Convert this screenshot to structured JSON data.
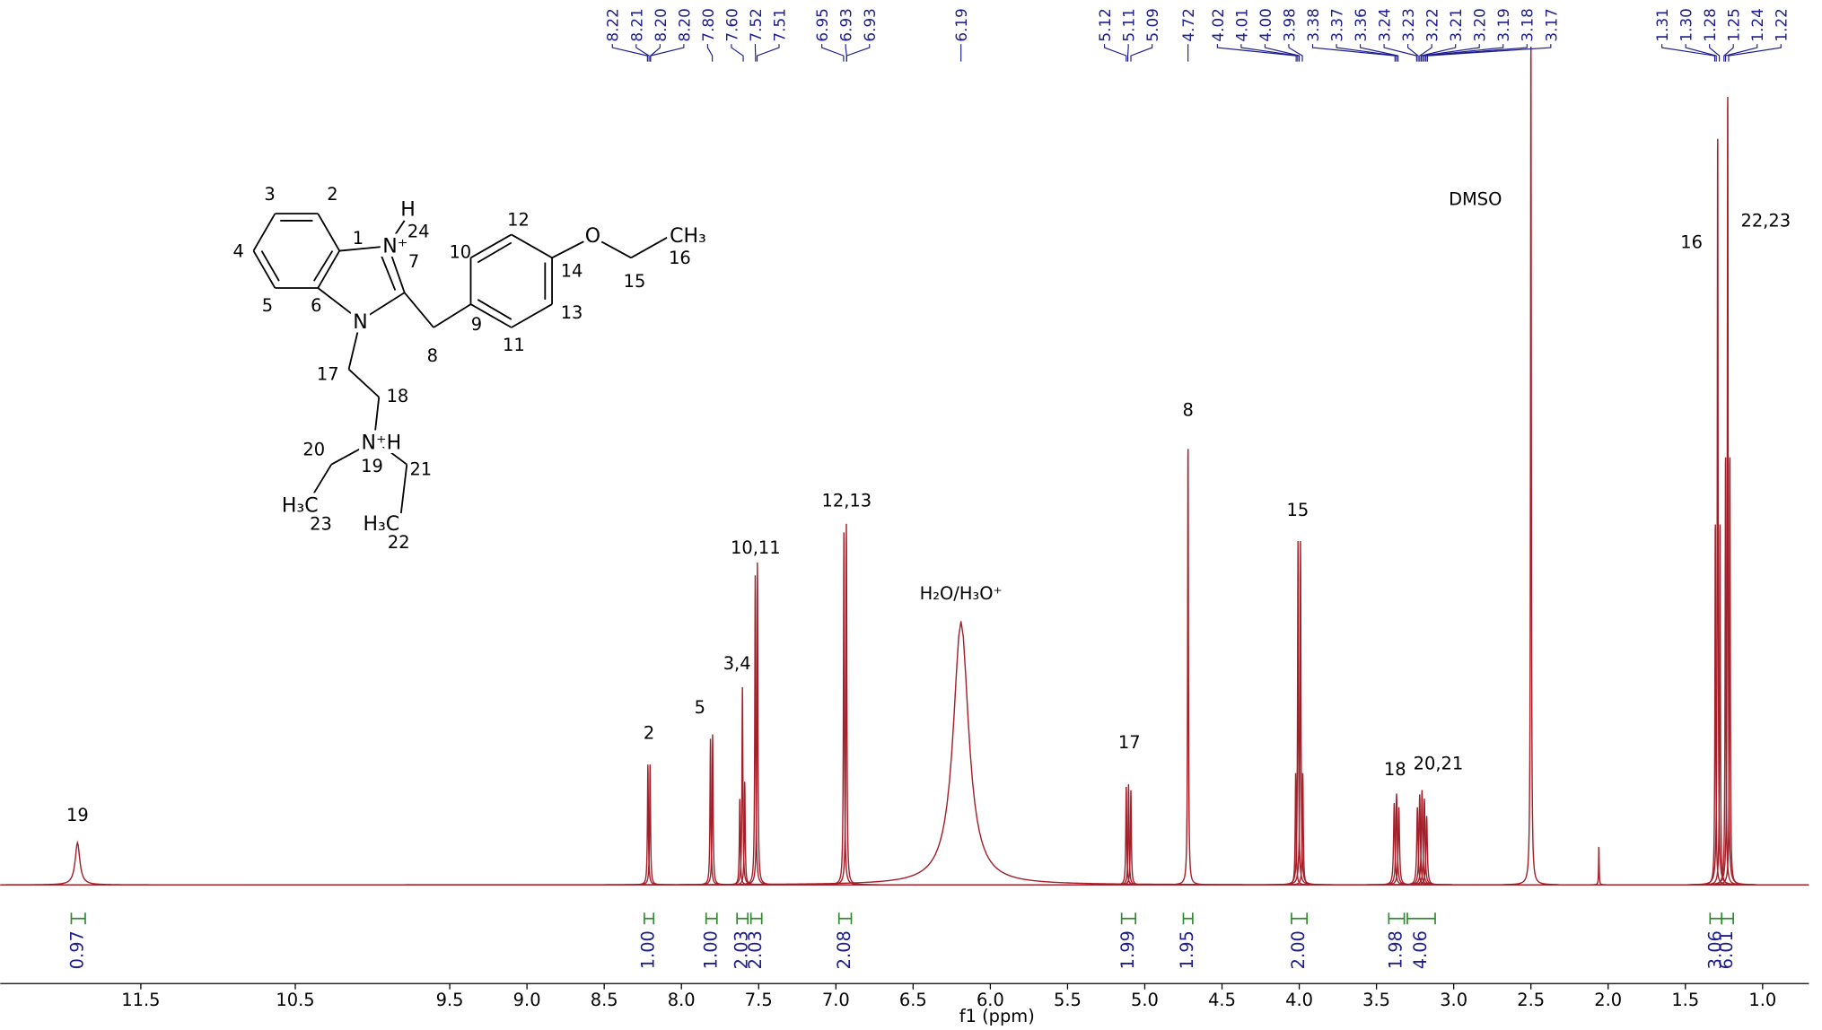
{
  "chart_data": {
    "type": "nmr",
    "xlabel": "f1 (ppm)",
    "xlim": [
      12.41,
      0.7
    ],
    "ylim": [
      0,
      100
    ],
    "xticks": [
      11.5,
      10.5,
      9.5,
      {
        "value": 9,
        "label": "9.0"
      },
      8.5,
      {
        "value": 8,
        "label": "8.0"
      },
      7.5,
      {
        "value": 7,
        "label": "7.0"
      },
      6.5,
      {
        "value": 6,
        "label": "6.0"
      },
      5.5,
      {
        "value": 5,
        "label": "5.0"
      },
      4.5,
      {
        "value": 4,
        "label": "4.0"
      },
      3.5,
      {
        "value": 3,
        "label": "3.0"
      },
      2.5,
      {
        "value": 2,
        "label": "2.0"
      },
      1.5,
      {
        "value": 1,
        "label": "1.0"
      }
    ],
    "spectrum_color": "#a3202a",
    "label_color": "#1c1c8f",
    "integral_color": "#2e8b2e",
    "peaks": {
      "shifts": [
        11.91,
        8.217,
        8.203,
        7.812,
        7.798,
        7.622,
        7.605,
        7.59,
        7.522,
        7.508,
        6.948,
        6.932,
        6.19,
        5.12,
        5.105,
        5.09,
        4.72,
        4.023,
        4.008,
        3.992,
        3.977,
        3.385,
        3.37,
        3.355,
        3.235,
        3.22,
        3.205,
        3.19,
        3.175,
        2.5,
        2.06,
        1.306,
        1.291,
        1.276,
        1.24,
        1.226,
        1.212
      ],
      "heights": [
        4.9,
        14,
        14,
        17,
        17.5,
        10,
        23,
        12,
        36,
        37.5,
        41,
        42,
        30.6,
        11.4,
        11.7,
        11,
        52,
        13,
        40,
        40,
        13,
        9.5,
        10.6,
        9,
        9,
        10.5,
        11,
        10,
        8,
        100,
        4.6,
        43,
        89,
        43,
        51,
        94,
        51
      ],
      "widths": [
        0.018,
        0.0035,
        0.0035,
        0.0035,
        0.0035,
        0.0035,
        0.0035,
        0.0035,
        0.0035,
        0.0035,
        0.0035,
        0.0035,
        0.06,
        0.0035,
        0.0035,
        0.0035,
        0.003,
        0.0035,
        0.0035,
        0.0035,
        0.0035,
        0.005,
        0.005,
        0.005,
        0.005,
        0.005,
        0.005,
        0.005,
        0.005,
        0.003,
        0.002,
        0.003,
        0.003,
        0.003,
        0.003,
        0.003,
        0.003
      ]
    },
    "peak_picks": {
      "values": [
        8.22,
        8.21,
        8.2,
        8.2,
        7.8,
        7.6,
        7.52,
        7.51,
        6.95,
        6.93,
        6.93,
        6.19,
        5.12,
        5.11,
        5.09,
        4.72,
        4.02,
        4.01,
        4,
        3.98,
        3.38,
        3.37,
        3.36,
        3.24,
        3.23,
        3.22,
        3.21,
        3.2,
        3.19,
        3.18,
        3.17,
        1.31,
        1.3,
        1.28,
        1.25,
        1.24,
        1.22
      ],
      "value_labels": [
        "8.22",
        "8.21",
        "8.20",
        "8.20",
        "7.80",
        "7.60",
        "7.52",
        "7.51",
        "6.95",
        "6.93",
        "6.93",
        "6.19",
        "5.12",
        "5.11",
        "5.09",
        "4.72",
        "4.02",
        "4.01",
        "4.00",
        "3.98",
        "3.38",
        "3.37",
        "3.36",
        "3.24",
        "3.23",
        "3.22",
        "3.21",
        "3.20",
        "3.19",
        "3.18",
        "3.17",
        "1.31",
        "1.30",
        "1.28",
        "1.25",
        "1.24",
        "1.22"
      ]
    },
    "integrals": {
      "ranges": [
        [
          11.95,
          11.86
        ],
        [
          8.24,
          8.18
        ],
        [
          7.84,
          7.77
        ],
        [
          7.64,
          7.57
        ],
        [
          7.55,
          7.48
        ],
        [
          6.98,
          6.9
        ],
        [
          5.15,
          5.06
        ],
        [
          4.75,
          4.69
        ],
        [
          4.05,
          3.95
        ],
        [
          3.42,
          3.32
        ],
        [
          3.3,
          3.12
        ],
        [
          1.34,
          1.265
        ],
        [
          1.265,
          1.19
        ]
      ],
      "values": [
        0.97,
        1,
        1,
        2.03,
        2.03,
        2.08,
        1.99,
        1.95,
        2,
        1.98,
        4.06,
        3.06,
        6.01
      ],
      "value_labels": [
        "0.97",
        "1.00",
        "1.00",
        "2.03",
        "2.03",
        "2.08",
        "1.99",
        "1.95",
        "2.00",
        "1.98",
        "4.06",
        "3.06",
        "6.01"
      ]
    },
    "annotations": [
      {
        "text": "19",
        "x": 11.91,
        "y": 8
      },
      {
        "text": "2",
        "x": 8.21,
        "y": 17.5
      },
      {
        "text": "5",
        "x": 7.88,
        "y": 20.5
      },
      {
        "text": "3,4",
        "x": 7.64,
        "y": 25.6
      },
      {
        "text": "10,11",
        "x": 7.52,
        "y": 39
      },
      {
        "text": "12,13",
        "x": 6.93,
        "y": 44.5
      },
      {
        "text": "H₂O/H₃O⁺",
        "x": 6.19,
        "y": 33.7
      },
      {
        "text": "17",
        "x": 5.1,
        "y": 16.4
      },
      {
        "text": "8",
        "x": 4.72,
        "y": 55
      },
      {
        "text": "15",
        "x": 4.01,
        "y": 43.4
      },
      {
        "text": "18",
        "x": 3.38,
        "y": 13.3
      },
      {
        "text": "20,21",
        "x": 3.1,
        "y": 14
      },
      {
        "text": "DMSO",
        "x": 2.86,
        "y": 79.5
      },
      {
        "text": "16",
        "x": 1.46,
        "y": 74.5
      },
      {
        "text": "22,23",
        "x": 0.98,
        "y": 77
      }
    ]
  },
  "structure": {
    "atoms": [
      "H",
      "N⁺",
      "O",
      "CH₃",
      "N",
      "N⁺H",
      "H₃C",
      "H₃C"
    ],
    "locants": [
      "1",
      "2",
      "3",
      "4",
      "5",
      "6",
      "7",
      "8",
      "9",
      "10",
      "11",
      "12",
      "13",
      "14",
      "15",
      "16",
      "17",
      "18",
      "19",
      "20",
      "21",
      "22",
      "23",
      "24"
    ]
  }
}
